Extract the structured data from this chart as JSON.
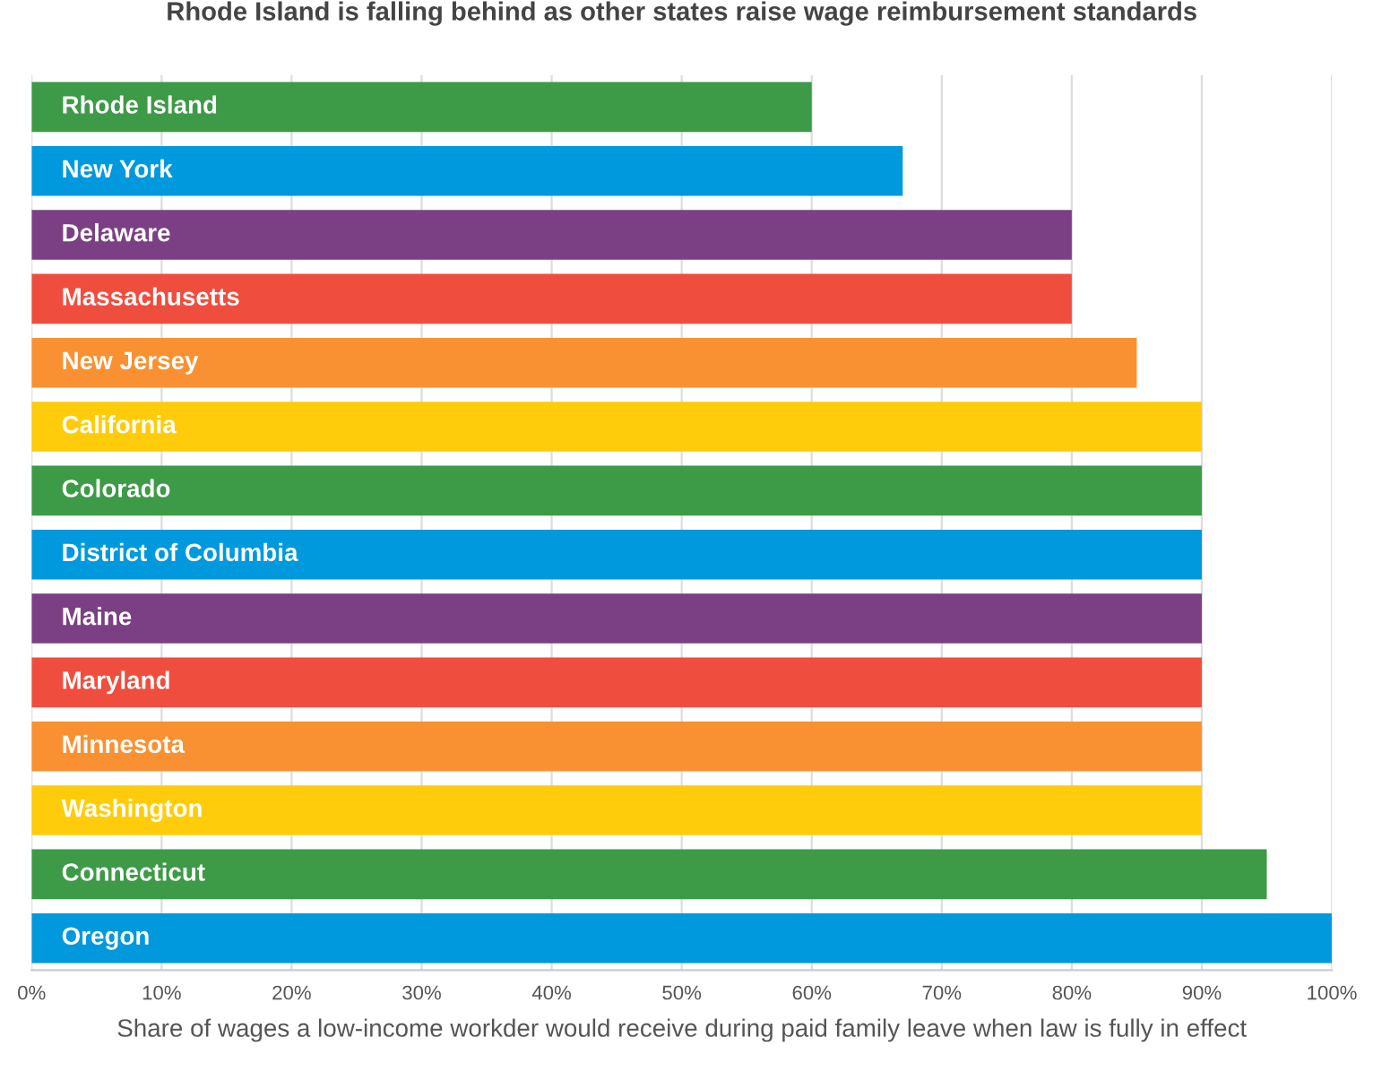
{
  "chart_data": {
    "type": "bar",
    "orientation": "horizontal",
    "title": "Rhode Island is falling behind as other states raise wage reimbursement standards",
    "xlabel": "Share of wages a low-income workder would receive during paid family leave when law is fully in effect",
    "categories": [
      "Rhode Island",
      "New York",
      "Delaware",
      "Massachusetts",
      "New Jersey",
      "California",
      "Colorado",
      "District of Columbia",
      "Maine",
      "Maryland",
      "Minnesota",
      "Washington",
      "Connecticut",
      "Oregon"
    ],
    "values": [
      60,
      67,
      80,
      80,
      85,
      90,
      90,
      90,
      90,
      90,
      90,
      90,
      95,
      100
    ],
    "colors": [
      "#3d9a47",
      "#0099dd",
      "#7b4083",
      "#ef4e3f",
      "#f99132",
      "#fecc0a",
      "#3d9a47",
      "#0099dd",
      "#7b4083",
      "#ef4e3f",
      "#f99132",
      "#fecc0a",
      "#3d9a47",
      "#0099dd"
    ],
    "xlim": [
      0,
      100
    ],
    "xticks": [
      {
        "value": 0,
        "label": "0%"
      },
      {
        "value": 10,
        "label": "10%"
      },
      {
        "value": 20,
        "label": "20%"
      },
      {
        "value": 30,
        "label": "30%"
      },
      {
        "value": 40,
        "label": "40%"
      },
      {
        "value": 50,
        "label": "50%"
      },
      {
        "value": 60,
        "label": "60%"
      },
      {
        "value": 70,
        "label": "70%"
      },
      {
        "value": 80,
        "label": "80%"
      },
      {
        "value": 90,
        "label": "90%"
      },
      {
        "value": 100,
        "label": "100%"
      }
    ],
    "grid": "x"
  }
}
